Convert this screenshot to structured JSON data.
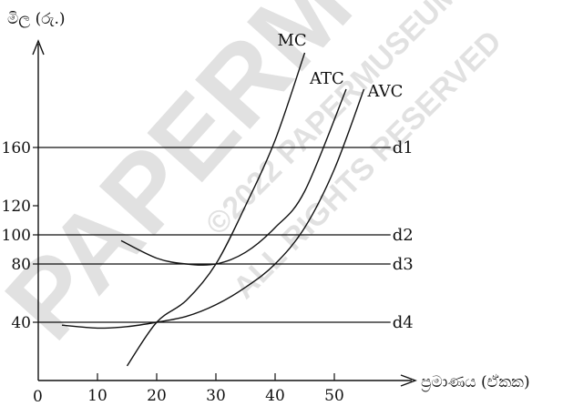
{
  "chart_data": {
    "type": "line",
    "ylabel": "මිල (රු.)",
    "xlabel": "ප්‍රමාණය (ඒකක)",
    "origin_label": "0",
    "x_ticks": [
      "10",
      "20",
      "30",
      "40",
      "50"
    ],
    "y_ticks": [
      "40",
      "80",
      "100",
      "120",
      "160"
    ],
    "xlim": [
      0,
      65
    ],
    "ylim": [
      0,
      210
    ],
    "series": [
      {
        "name": "MC",
        "x": [
          15,
          20,
          25,
          30,
          35,
          40,
          45
        ],
        "y": [
          10,
          40,
          55,
          80,
          120,
          165,
          225
        ]
      },
      {
        "name": "ATC",
        "x": [
          14,
          20,
          25,
          30,
          35,
          40,
          45,
          52
        ],
        "y": [
          96,
          84,
          80,
          80,
          88,
          105,
          130,
          200
        ]
      },
      {
        "name": "AVC",
        "x": [
          4,
          10,
          15,
          20,
          25,
          30,
          35,
          40,
          45,
          50,
          55
        ],
        "y": [
          38,
          36,
          37,
          40,
          44,
          52,
          64,
          80,
          105,
          145,
          200
        ]
      }
    ],
    "demand_lines": [
      {
        "name": "d1",
        "y": 160
      },
      {
        "name": "d2",
        "y": 100
      },
      {
        "name": "d3",
        "y": 80
      },
      {
        "name": "d4",
        "y": 40
      }
    ],
    "watermark": [
      "PAPERMUSEUM",
      "©2022 PAPERMUSEUM",
      "ALL RIGHTS RESERVED"
    ]
  }
}
